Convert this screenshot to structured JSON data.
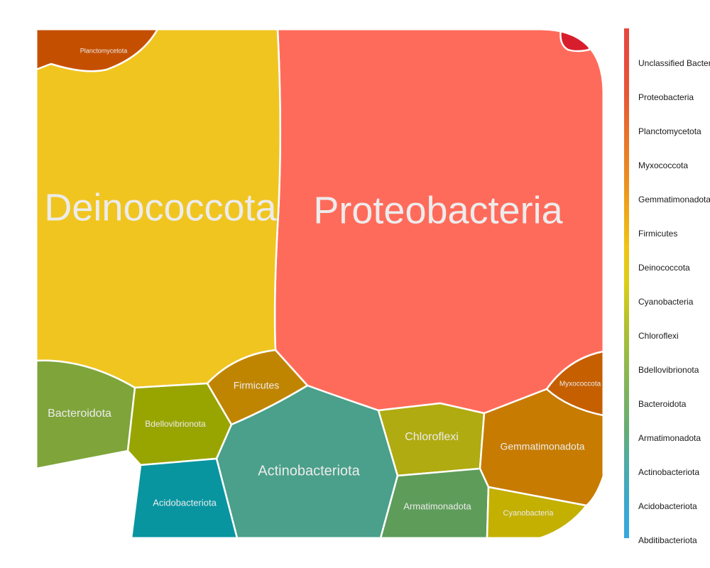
{
  "chart_data": {
    "type": "voronoi-treemap",
    "title": "",
    "cells": [
      {
        "name": "Proteobacteria",
        "label": "Proteobacteria",
        "color": "#ff6b5b"
      },
      {
        "name": "Deinococcota",
        "label": "Deinococcota",
        "color": "#f0c520"
      },
      {
        "name": "Planctomycetota",
        "label": "Planctomycetota",
        "color": "#c54f00"
      },
      {
        "name": "Unclassified Bacteria",
        "label": "",
        "color": "#d81e2c"
      },
      {
        "name": "Bacteroidota",
        "label": "Bacteroidota",
        "color": "#7ea43a"
      },
      {
        "name": "Bdellovibrionota",
        "label": "Bdellovibrionota",
        "color": "#98a500"
      },
      {
        "name": "Firmicutes",
        "label": "Firmicutes",
        "color": "#c08500"
      },
      {
        "name": "Actinobacteriota",
        "label": "Actinobacteriota",
        "color": "#4aa08a"
      },
      {
        "name": "Chloroflexi",
        "label": "Chloroflexi",
        "color": "#afab10"
      },
      {
        "name": "Gemmatimonadota",
        "label": "Gemmatimonadota",
        "color": "#c77b00"
      },
      {
        "name": "Myxococcota",
        "label": "Myxococcota",
        "color": "#c55f00"
      },
      {
        "name": "Acidobacteriota",
        "label": "Acidobacteriota",
        "color": "#0895a0"
      },
      {
        "name": "Armatimonadota",
        "label": "Armatimonadota",
        "color": "#5e9c5a"
      },
      {
        "name": "Cyanobacteria",
        "label": "Cyanobacteria",
        "color": "#c3b000"
      }
    ],
    "legend": {
      "position": "right",
      "entries": [
        {
          "label": "Unclassified Bacteria",
          "color": "#e4473f"
        },
        {
          "label": "Proteobacteria",
          "color": "#e84c3c"
        },
        {
          "label": "Planctomycetota",
          "color": "#e65a34"
        },
        {
          "label": "Myxococcota",
          "color": "#e8742a"
        },
        {
          "label": "Gemmatimonadota",
          "color": "#eb8c20"
        },
        {
          "label": "Firmicutes",
          "color": "#eea818"
        },
        {
          "label": "Deinococcota",
          "color": "#efc414"
        },
        {
          "label": "Cyanobacteria",
          "color": "#dcce16"
        },
        {
          "label": "Chloroflexi",
          "color": "#b7c22a"
        },
        {
          "label": "Bdellovibrionota",
          "color": "#98bb46"
        },
        {
          "label": "Bacteroidota",
          "color": "#7fb35d"
        },
        {
          "label": "Armatimonadota",
          "color": "#64ad76"
        },
        {
          "label": "Actinobacteriota",
          "color": "#4cabab"
        },
        {
          "label": "Acidobacteriota",
          "color": "#3aa8cc"
        },
        {
          "label": "Abditibacteriota",
          "color": "#38a8e0"
        }
      ]
    }
  }
}
